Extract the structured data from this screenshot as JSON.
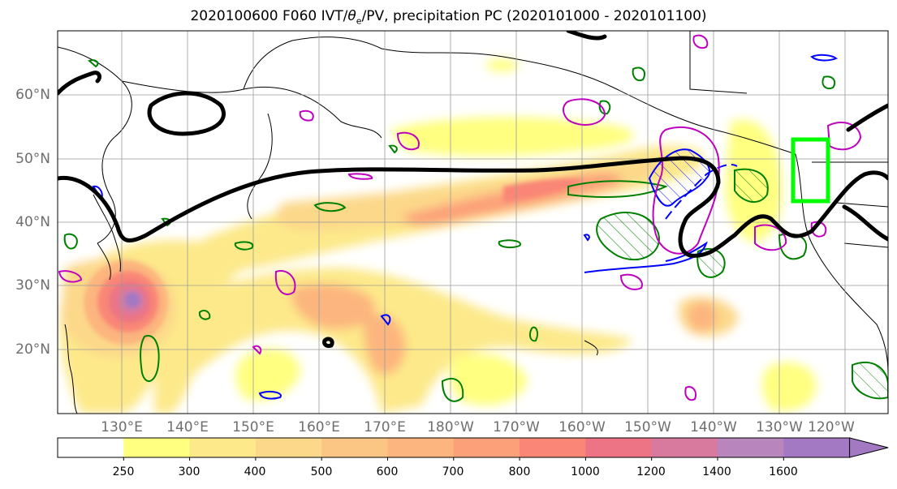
{
  "title": {
    "prefix": "2020100600 F060 IVT/",
    "theta": "θ",
    "theta_sub": "e",
    "suffix": "/PV, precipitation PC (2020101000 - 2020101100)"
  },
  "lat_labels": [
    "60°N",
    "50°N",
    "40°N",
    "30°N",
    "20°N"
  ],
  "lon_labels": [
    "130°E",
    "140°E",
    "150°E",
    "160°E",
    "170°E",
    "180°W",
    "170°W",
    "160°W",
    "150°W",
    "140°W",
    "130°W",
    "120°W"
  ],
  "colorbar": {
    "ticks": [
      "250",
      "300",
      "400",
      "500",
      "600",
      "700",
      "800",
      "1000",
      "1200",
      "1400",
      "1600"
    ],
    "colors": [
      "#ffffff",
      "#ffff80",
      "#fde98a",
      "#fcd88a",
      "#fbc684",
      "#fcb57e",
      "#fca079",
      "#f98676",
      "#ec7485",
      "#d77a9e",
      "#b985bd",
      "#a379c4"
    ]
  },
  "colors": {
    "theta_contour": "#008000",
    "pv_contour": "#0000ff",
    "pv2_contour": "#c000c0",
    "dynamic_tropopause": "#000000",
    "target_box": "#00ff00",
    "coastline": "#000000"
  }
}
